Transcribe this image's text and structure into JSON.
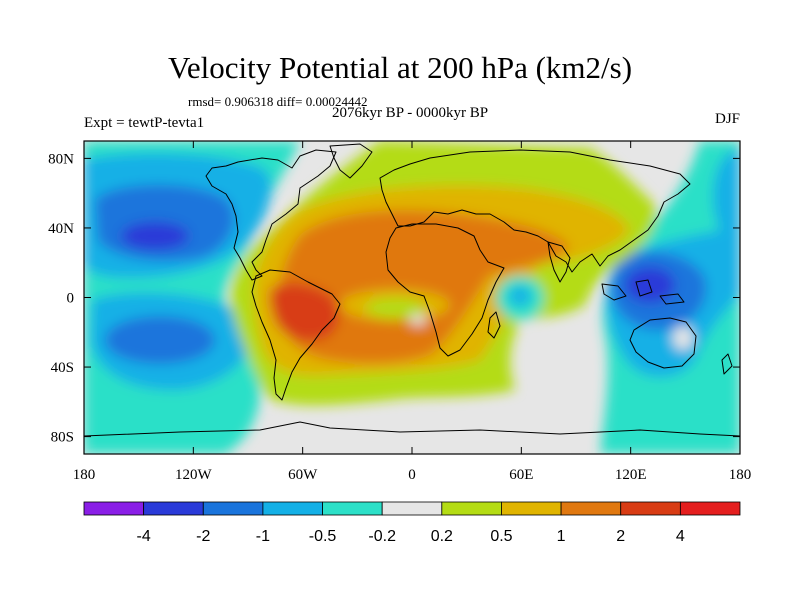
{
  "title": "Velocity Potential at 200 hPa (km2/s)",
  "stats": "rmsd= 0.906318 diff= 0.00024442",
  "period": "2076kyr BP - 0000kyr BP",
  "experiment": "Expt = tewtP-tevta1",
  "season": "DJF",
  "chart_data": {
    "type": "heatmap",
    "projection": "cylindrical equidistant",
    "xlim": [
      -180,
      180
    ],
    "ylim": [
      -90,
      90
    ],
    "x_ticks": [
      {
        "value": -180,
        "label": "180"
      },
      {
        "value": -120,
        "label": "120W"
      },
      {
        "value": -60,
        "label": "60W"
      },
      {
        "value": 0,
        "label": "0"
      },
      {
        "value": 60,
        "label": "60E"
      },
      {
        "value": 120,
        "label": "120E"
      },
      {
        "value": 180,
        "label": "180"
      }
    ],
    "y_ticks": [
      {
        "value": 80,
        "label": "80N"
      },
      {
        "value": 40,
        "label": "40N"
      },
      {
        "value": 0,
        "label": "0"
      },
      {
        "value": -40,
        "label": "40S"
      },
      {
        "value": -80,
        "label": "80S"
      }
    ],
    "colorbar": {
      "levels": [
        "-4",
        "-2",
        "-1",
        "-0.5",
        "-0.2",
        "0.2",
        "0.5",
        "1",
        "2",
        "4"
      ],
      "colors": [
        "#8a1ee6",
        "#2a3ad8",
        "#1a74dc",
        "#14b0e6",
        "#2ce0c8",
        "#e6e6e6",
        "#b4dc14",
        "#e0b400",
        "#e07810",
        "#d83c14",
        "#e41e1e"
      ]
    },
    "centers": [
      {
        "lon": -140,
        "lat": 32,
        "level": -2,
        "note": "N Pacific minimum"
      },
      {
        "lon": -150,
        "lat": -22,
        "level": -1,
        "note": "S Pacific minimum"
      },
      {
        "lon": 128,
        "lat": 5,
        "level": -2,
        "note": "Maritime continent minimum"
      },
      {
        "lon": 65,
        "lat": 0,
        "level": -0.5,
        "note": "Indian Ocean minimum"
      },
      {
        "lon": -60,
        "lat": -8,
        "level": 4,
        "note": "South America maximum"
      },
      {
        "lon": -10,
        "lat": 25,
        "level": 2,
        "note": "N Africa / Atlantic maximum"
      }
    ]
  }
}
